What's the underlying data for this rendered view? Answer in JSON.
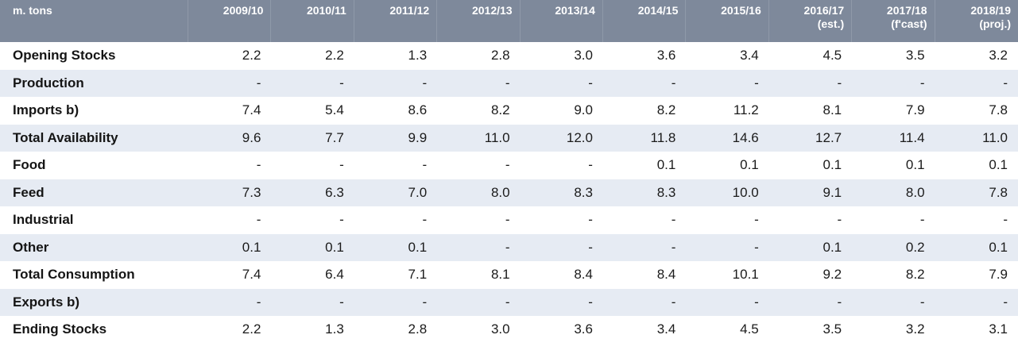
{
  "chart_data": {
    "type": "table",
    "unit_label": "m. tons",
    "columns": [
      {
        "line1": "2009/10",
        "line2": ""
      },
      {
        "line1": "2010/11",
        "line2": ""
      },
      {
        "line1": "2011/12",
        "line2": ""
      },
      {
        "line1": "2012/13",
        "line2": ""
      },
      {
        "line1": "2013/14",
        "line2": ""
      },
      {
        "line1": "2014/15",
        "line2": ""
      },
      {
        "line1": "2015/16",
        "line2": ""
      },
      {
        "line1": "2016/17",
        "line2": "(est.)"
      },
      {
        "line1": "2017/18",
        "line2": "(f'cast)"
      },
      {
        "line1": "2018/19",
        "line2": "(proj.)"
      }
    ],
    "rows": [
      {
        "label": "Opening Stocks",
        "values": [
          "2.2",
          "2.2",
          "1.3",
          "2.8",
          "3.0",
          "3.6",
          "3.4",
          "4.5",
          "3.5",
          "3.2"
        ]
      },
      {
        "label": "Production",
        "values": [
          "-",
          "-",
          "-",
          "-",
          "-",
          "-",
          "-",
          "-",
          "-",
          "-"
        ]
      },
      {
        "label": "Imports b)",
        "values": [
          "7.4",
          "5.4",
          "8.6",
          "8.2",
          "9.0",
          "8.2",
          "11.2",
          "8.1",
          "7.9",
          "7.8"
        ]
      },
      {
        "label": "Total Availability",
        "values": [
          "9.6",
          "7.7",
          "9.9",
          "11.0",
          "12.0",
          "11.8",
          "14.6",
          "12.7",
          "11.4",
          "11.0"
        ]
      },
      {
        "label": "Food",
        "values": [
          "-",
          "-",
          "-",
          "-",
          "-",
          "0.1",
          "0.1",
          "0.1",
          "0.1",
          "0.1"
        ]
      },
      {
        "label": "Feed",
        "values": [
          "7.3",
          "6.3",
          "7.0",
          "8.0",
          "8.3",
          "8.3",
          "10.0",
          "9.1",
          "8.0",
          "7.8"
        ]
      },
      {
        "label": "Industrial",
        "values": [
          "-",
          "-",
          "-",
          "-",
          "-",
          "-",
          "-",
          "-",
          "-",
          "-"
        ]
      },
      {
        "label": "Other",
        "values": [
          "0.1",
          "0.1",
          "0.1",
          "-",
          "-",
          "-",
          "-",
          "0.1",
          "0.2",
          "0.1"
        ]
      },
      {
        "label": "Total Consumption",
        "values": [
          "7.4",
          "6.4",
          "7.1",
          "8.1",
          "8.4",
          "8.4",
          "10.1",
          "9.2",
          "8.2",
          "7.9"
        ]
      },
      {
        "label": "Exports b)",
        "values": [
          "-",
          "-",
          "-",
          "-",
          "-",
          "-",
          "-",
          "-",
          "-",
          "-"
        ]
      },
      {
        "label": "Ending Stocks",
        "values": [
          "2.2",
          "1.3",
          "2.8",
          "3.0",
          "3.6",
          "3.4",
          "4.5",
          "3.5",
          "3.2",
          "3.1"
        ]
      }
    ]
  },
  "colors": {
    "header_background": "#7e899b",
    "header_text": "#ffffff",
    "stripe_row": "#e6ebf3",
    "plain_row": "#ffffff",
    "body_text": "#1b1b1b"
  }
}
